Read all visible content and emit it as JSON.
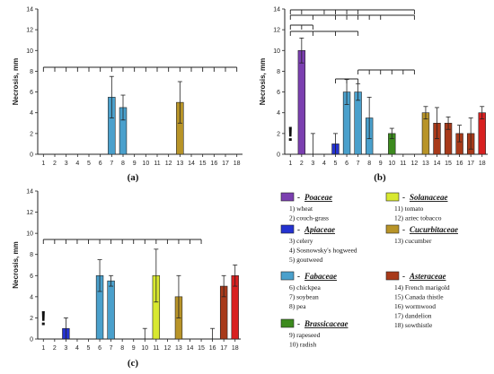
{
  "chart_data": [
    {
      "type": "bar",
      "panel_label": "(a)",
      "ylabel": "Necrosis, mm",
      "ylim": [
        0,
        14
      ],
      "yticks": [
        0,
        2,
        4,
        6,
        8,
        10,
        12,
        14
      ],
      "categories": [
        "1",
        "2",
        "3",
        "4",
        "5",
        "6",
        "7",
        "8",
        "9",
        "10",
        "11",
        "12",
        "13",
        "14",
        "15",
        "16",
        "17",
        "18"
      ],
      "values": [
        0,
        0,
        0,
        0,
        0,
        0,
        5.5,
        4.5,
        0,
        0,
        0,
        0,
        5.0,
        0,
        0,
        0,
        0,
        0
      ],
      "errors": [
        0,
        0,
        0,
        0,
        0,
        0,
        2.0,
        1.2,
        0,
        0,
        0,
        0,
        2.0,
        0,
        0,
        0,
        0,
        0
      ]
    },
    {
      "type": "bar",
      "panel_label": "(b)",
      "ylabel": "Necrosis, mm",
      "ylim": [
        0,
        14
      ],
      "yticks": [
        0,
        2,
        4,
        6,
        8,
        10,
        12,
        14
      ],
      "categories": [
        "1",
        "2",
        "3",
        "4",
        "5",
        "6",
        "7",
        "8",
        "9",
        "10",
        "11",
        "12",
        "13",
        "14",
        "15",
        "16",
        "17",
        "18"
      ],
      "values": [
        0,
        10.0,
        0,
        0,
        1.0,
        6.0,
        6.0,
        3.5,
        0,
        2.0,
        0,
        0,
        4.0,
        3.0,
        3.0,
        2.0,
        2.0,
        4.0
      ],
      "errors": [
        0,
        1.2,
        2.0,
        0,
        1.0,
        1.2,
        0.8,
        2.0,
        0,
        0.5,
        0,
        0,
        0.6,
        1.5,
        0.6,
        0.8,
        1.5,
        0.6
      ],
      "annotation": "!"
    },
    {
      "type": "bar",
      "panel_label": "(c)",
      "ylabel": "Necrosis, mm",
      "ylim": [
        0,
        14
      ],
      "yticks": [
        0,
        2,
        4,
        6,
        8,
        10,
        12,
        14
      ],
      "categories": [
        "1",
        "2",
        "3",
        "4",
        "5",
        "6",
        "7",
        "8",
        "9",
        "10",
        "11",
        "12",
        "13",
        "14",
        "15",
        "16",
        "17",
        "18"
      ],
      "values": [
        0,
        0,
        1.0,
        0,
        0,
        6.0,
        5.5,
        0,
        0,
        0,
        6.0,
        0,
        4.0,
        0,
        0,
        0,
        5.0,
        6.0
      ],
      "errors": [
        0,
        0,
        1.0,
        0,
        0,
        1.5,
        0.5,
        0,
        0,
        1.0,
        2.5,
        0,
        2.0,
        0,
        0,
        1.0,
        1.0,
        1.0
      ],
      "annotation": "!"
    }
  ],
  "family_colors": {
    "poaceae": "#7b3fb0",
    "apiaceae": "#2432d0",
    "fabaceae": "#4aa0cc",
    "brassicaceae": "#3c8a1e",
    "solanaceae": "#d8e830",
    "cucurbitaceae": "#b89428",
    "asteraceae": "#a83a1a",
    "asteraceae_alt": "#d82020"
  },
  "bar_family": [
    "poaceae",
    "poaceae",
    "apiaceae",
    "apiaceae",
    "apiaceae",
    "fabaceae",
    "fabaceae",
    "fabaceae",
    "brassicaceae",
    "brassicaceae",
    "solanaceae",
    "solanaceae",
    "cucurbitaceae",
    "asteraceae",
    "asteraceae",
    "asteraceae",
    "asteraceae",
    "asteraceae_alt"
  ],
  "legend": [
    {
      "family": "Poaceae",
      "dash": "-",
      "color_key": "poaceae",
      "items": [
        "1) wheat",
        "2) couch-grass"
      ]
    },
    {
      "family": "Apiaceae",
      "dash": "-",
      "color_key": "apiaceae",
      "items": [
        "3) celery",
        "4) Sosnowsky's hogweed",
        "5) goutweed"
      ]
    },
    {
      "family": "Fabaceae",
      "dash": "-",
      "color_key": "fabaceae",
      "items": [
        "6) chickpea",
        "7) soybean",
        "8) pea"
      ]
    },
    {
      "family": "Brassicaceae",
      "dash": "-",
      "color_key": "brassicaceae",
      "items": [
        "9) rapeseed",
        "10) radish"
      ]
    },
    {
      "family": "Solanaceae",
      "dash": "-",
      "color_key": "solanaceae",
      "items": [
        "11) tomato",
        "12) aztec tobacco"
      ]
    },
    {
      "family": "Cucurbitaceae",
      "dash": "-",
      "color_key": "cucurbitaceae",
      "items": [
        "13) cucumber"
      ]
    },
    {
      "family": "Asteraceae",
      "dash": "-",
      "color_key": "asteraceae",
      "items": [
        "14) French marigold",
        "15) Canada thistle",
        "16) wormwood",
        "17) dandelion",
        "18) sowthistle"
      ]
    }
  ]
}
